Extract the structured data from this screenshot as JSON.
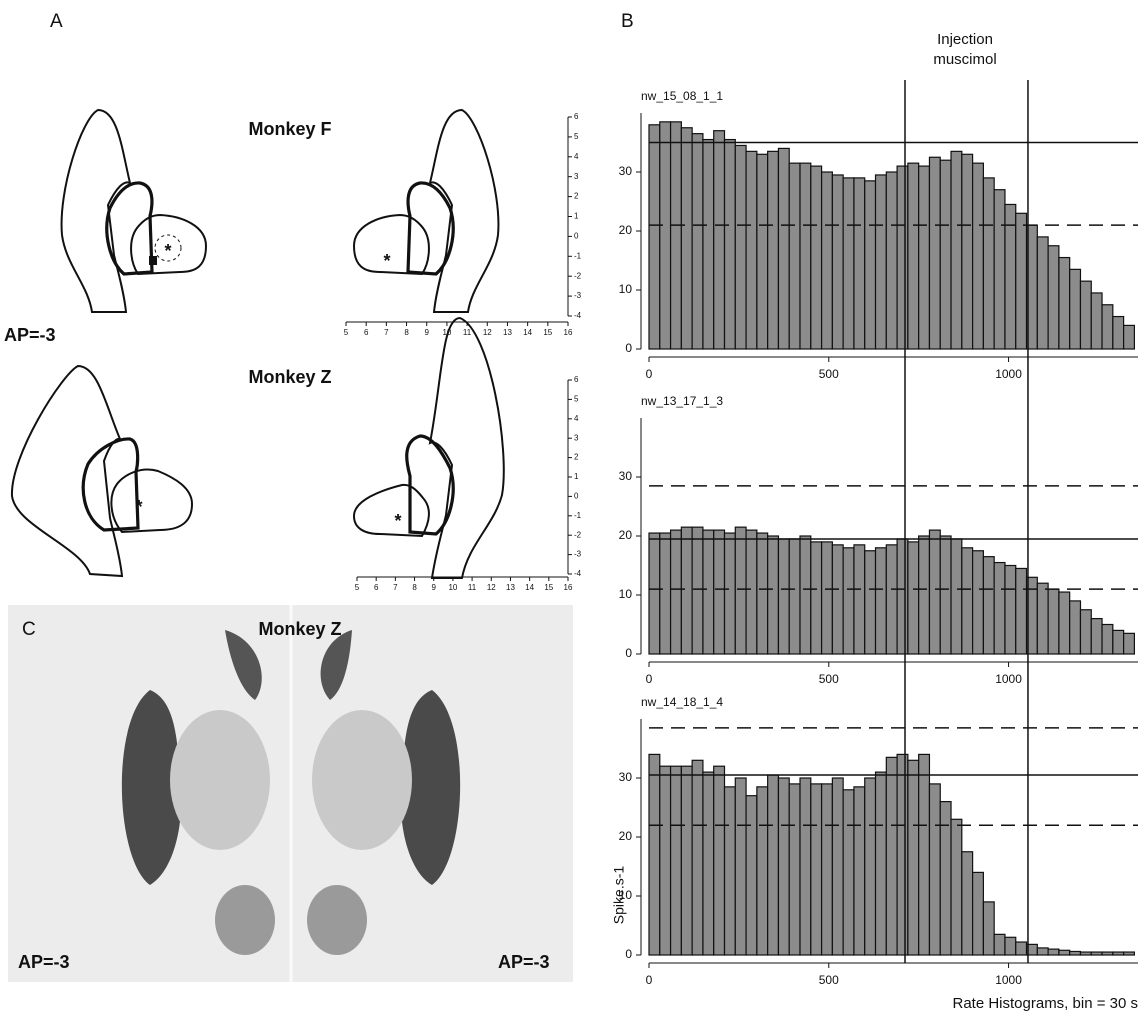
{
  "panel_labels": {
    "a": "A",
    "b": "B",
    "c": "C"
  },
  "panel_a": {
    "title_f": "Monkey F",
    "title_z": "Monkey Z",
    "ap": "AP=-3",
    "marker": "*",
    "atlas_xticks": [
      5,
      6,
      7,
      8,
      9,
      10,
      11,
      12,
      13,
      14,
      15,
      16
    ],
    "atlas_yticks": [
      -4,
      -3,
      -2,
      -1,
      0,
      1,
      2,
      3,
      4,
      5,
      6
    ]
  },
  "panel_c": {
    "title": "Monkey Z",
    "ap_left": "AP=-3",
    "ap_right": "AP=-3"
  },
  "injection": {
    "label_lines": [
      "Injection",
      "muscimol"
    ],
    "x": [
      712,
      1054
    ]
  },
  "chart_data": [
    {
      "type": "histogram",
      "title": "nw_15_08_1_1",
      "bins": [
        0,
        30,
        60,
        90,
        120,
        150,
        180,
        210,
        240,
        270,
        300,
        330,
        360,
        390,
        420,
        450,
        480,
        510,
        540,
        570,
        600,
        630,
        660,
        690,
        720,
        750,
        780,
        810,
        840,
        870,
        900,
        930,
        960,
        990,
        1020,
        1050,
        1080,
        1110,
        1140,
        1170,
        1200,
        1230,
        1260,
        1290,
        1320,
        1350
      ],
      "values": [
        38,
        38.5,
        38.5,
        37.5,
        36.5,
        35.5,
        37,
        35.5,
        34.5,
        33.5,
        33,
        33.5,
        34,
        31.5,
        31.5,
        31,
        30,
        29.5,
        29,
        29,
        28.5,
        29.5,
        30,
        31,
        31.5,
        31,
        32.5,
        32,
        33.5,
        33,
        31.5,
        29,
        27,
        24.5,
        23,
        21,
        19,
        17.5,
        15.5,
        13.5,
        11.5,
        9.5,
        7.5,
        5.5,
        4
      ],
      "color": "#8c8c8c",
      "xlim": [
        0,
        1360
      ],
      "xticks": [
        0,
        500,
        1000
      ],
      "ylim": [
        0,
        40
      ],
      "yticks": [
        0,
        10,
        20,
        30
      ],
      "hlines": [
        {
          "value": 35,
          "style": "solid"
        },
        {
          "value": 21,
          "style": "dashed"
        }
      ]
    },
    {
      "type": "histogram",
      "title": "nw_13_17_1_3",
      "bins": [
        0,
        30,
        60,
        90,
        120,
        150,
        180,
        210,
        240,
        270,
        300,
        330,
        360,
        390,
        420,
        450,
        480,
        510,
        540,
        570,
        600,
        630,
        660,
        690,
        720,
        750,
        780,
        810,
        840,
        870,
        900,
        930,
        960,
        990,
        1020,
        1050,
        1080,
        1110,
        1140,
        1170,
        1200,
        1230,
        1260,
        1290,
        1320,
        1350
      ],
      "values": [
        20.5,
        20.5,
        21,
        21.5,
        21.5,
        21,
        21,
        20.5,
        21.5,
        21,
        20.5,
        20,
        19.5,
        19.5,
        20,
        19,
        19,
        18.5,
        18,
        18.5,
        17.5,
        18,
        18.5,
        19.5,
        19,
        20,
        21,
        20,
        19.5,
        18,
        17.5,
        16.5,
        15.5,
        15,
        14.5,
        13,
        12,
        11,
        10.5,
        9,
        7.5,
        6,
        5,
        4,
        3.5
      ],
      "color": "#8c8c8c",
      "xlim": [
        0,
        1360
      ],
      "xticks": [
        0,
        500,
        1000
      ],
      "ylim": [
        0,
        40
      ],
      "yticks": [
        0,
        10,
        20,
        30
      ],
      "hlines": [
        {
          "value": 19.5,
          "style": "solid"
        },
        {
          "value": 28.5,
          "style": "dashed"
        },
        {
          "value": 11,
          "style": "dashed"
        }
      ]
    },
    {
      "type": "histogram",
      "title": "nw_14_18_1_4",
      "ylabel": "Spike.s-1",
      "xlabel": "Rate Histograms, bin = 30 s",
      "bins": [
        0,
        30,
        60,
        90,
        120,
        150,
        180,
        210,
        240,
        270,
        300,
        330,
        360,
        390,
        420,
        450,
        480,
        510,
        540,
        570,
        600,
        630,
        660,
        690,
        720,
        750,
        780,
        810,
        840,
        870,
        900,
        930,
        960,
        990,
        1020,
        1050,
        1080,
        1110,
        1140,
        1170,
        1200,
        1230,
        1260,
        1290,
        1320,
        1350
      ],
      "values": [
        34,
        32,
        32,
        32,
        33,
        31,
        32,
        28.5,
        30,
        27,
        28.5,
        30.5,
        30,
        29,
        30,
        29,
        29,
        30,
        28,
        28.5,
        30,
        31,
        33.5,
        34,
        33,
        34,
        29,
        26,
        23,
        17.5,
        14,
        9,
        3.5,
        3,
        2.2,
        1.8,
        1.2,
        1,
        0.8,
        0.6,
        0.5,
        0.5,
        0.5,
        0.5,
        0.5
      ],
      "color": "#8c8c8c",
      "xlim": [
        0,
        1360
      ],
      "xticks": [
        0,
        500,
        1000
      ],
      "ylim": [
        0,
        40
      ],
      "yticks": [
        0,
        10,
        20,
        30
      ],
      "hlines": [
        {
          "value": 30.5,
          "style": "solid"
        },
        {
          "value": 38.5,
          "style": "dashed"
        },
        {
          "value": 22,
          "style": "dashed"
        }
      ]
    }
  ]
}
